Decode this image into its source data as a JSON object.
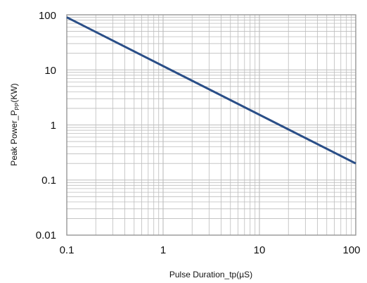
{
  "chart_data": {
    "type": "line",
    "xscale": "log",
    "yscale": "log",
    "xlim": [
      0.1,
      100
    ],
    "ylim": [
      0.01,
      100
    ],
    "xticks": [
      "0.1",
      "1",
      "10",
      "100"
    ],
    "yticks": [
      "100",
      "10",
      "1",
      "0.1",
      "0.01"
    ],
    "xlabel": "Pulse Duration_tp(µS)",
    "ylabel": {
      "main": "Peak Power_P",
      "sub": "PP",
      "unit": "(KW)"
    },
    "grid": true,
    "minor_grid": true,
    "series": [
      {
        "color": "#2a4e87",
        "points": [
          {
            "x": 0.1,
            "y": 90
          },
          {
            "x": 100,
            "y": 0.2
          }
        ]
      }
    ]
  },
  "colors": {
    "grid": "#bdbdbd",
    "frame": "#8f8f8f",
    "line": "#2a4e87"
  }
}
